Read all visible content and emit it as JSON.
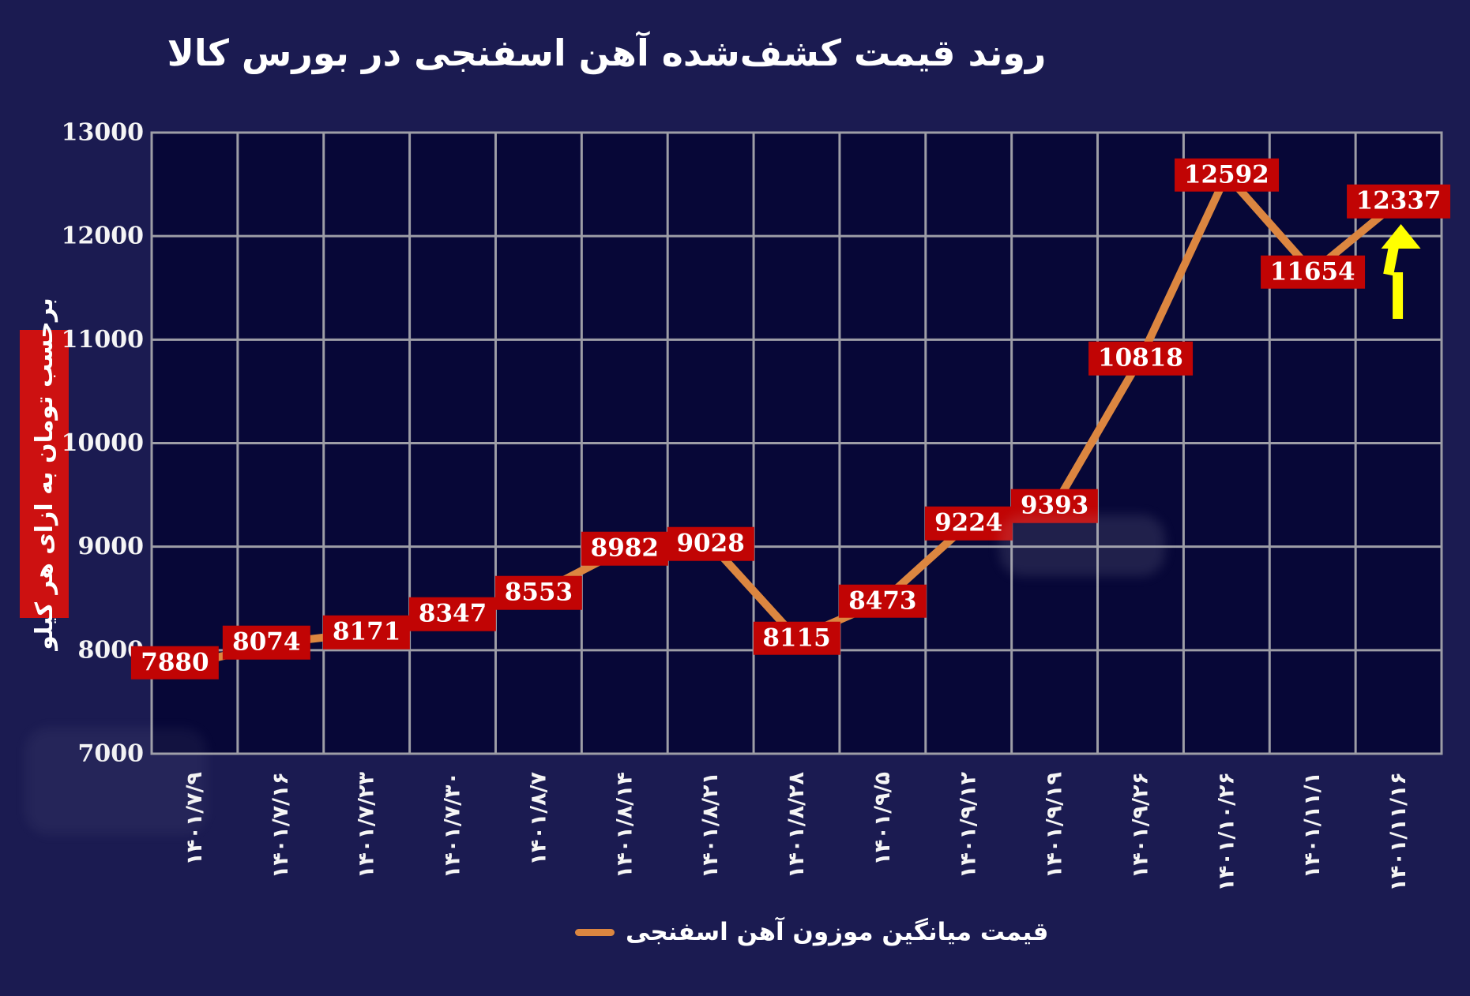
{
  "title": "روند قیمت کشف‌شده آهن اسفنجی در بورس کالا",
  "y_axis_label": "برحسب تومان به ازای هر کیلو",
  "legend": {
    "label": "قیمت میانگین موزون آهن اسفنجی"
  },
  "colors": {
    "page_bg": "#1b1b51",
    "plot_bg": "#070737",
    "grid": "#9d9da6",
    "line": "#dc8640",
    "label_bg": "#c10404",
    "label_text": "#ffffff",
    "axis_text": "#f5f5f5",
    "ylabel_band_bg": "#cd1111",
    "arrow": "#ffff00"
  },
  "chart_data": {
    "type": "line",
    "title": "روند قیمت کشف‌شده آهن اسفنجی در بورس کالا",
    "series_name": "قیمت میانگین موزون آهن اسفنجی",
    "categories": [
      "۱۴۰۱/۷/۹",
      "۱۴۰۱/۷/۱۶",
      "۱۴۰۱/۷/۲۳",
      "۱۴۰۱/۷/۳۰",
      "۱۴۰۱/۸/۷",
      "۱۴۰۱/۸/۱۴",
      "۱۴۰۱/۸/۲۱",
      "۱۴۰۱/۸/۲۸",
      "۱۴۰۱/۹/۵",
      "۱۴۰۱/۹/۱۲",
      "۱۴۰۱/۹/۱۹",
      "۱۴۰۱/۹/۲۶",
      "۱۴۰۱/۱۰/۲۶",
      "۱۴۰۱/۱۱/۱",
      "۱۴۰۱/۱۱/۱۶"
    ],
    "values": [
      7880,
      8074,
      8171,
      8347,
      8553,
      8982,
      9028,
      8115,
      8473,
      9224,
      9393,
      10818,
      12592,
      11654,
      12337
    ],
    "data_labels": [
      "7880",
      "8074",
      "8171",
      "8347",
      "8553",
      "8982",
      "9028",
      "8115",
      "8473",
      "9224",
      "9393",
      "10818",
      "12592",
      "11654",
      "12337"
    ],
    "y_ticks": [
      13000,
      12000,
      11000,
      10000,
      9000,
      8000,
      7000
    ],
    "ylim": [
      7000,
      13000
    ],
    "grid": true,
    "legend_position": "bottom",
    "annotation": "yellow-up-arrow-below-last-point"
  }
}
